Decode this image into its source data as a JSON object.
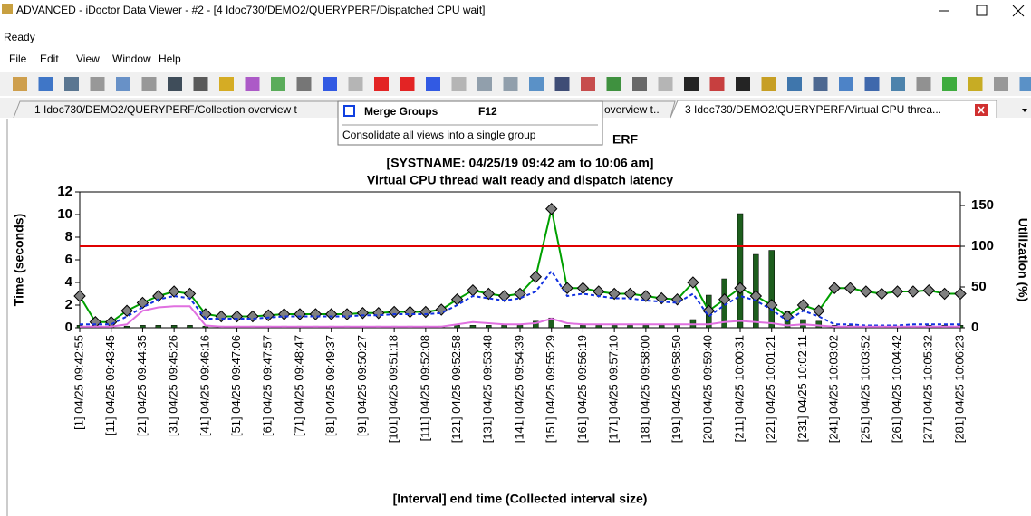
{
  "window": {
    "title": "ADVANCED - iDoctor Data Viewer - #2 - [4 Idoc730/DEMO2/QUERYPERF/Dispatched CPU wait]",
    "status": "Ready"
  },
  "menu": [
    "File",
    "Edit",
    "View",
    "Window",
    "Help"
  ],
  "tabs": [
    "1 Idoc730/DEMO2/QUERYPERF/Collection overview t",
    "overview t..",
    "3 Idoc730/DEMO2/QUERYPERF/Virtual CPU threa..."
  ],
  "tooltip": {
    "title": "Merge Groups",
    "shortcut": "F12",
    "description": "Consolidate all views into a single group"
  },
  "chart_data": {
    "type": "combo",
    "title": "ERF",
    "subtitle": "[SYSTNAME: 04/25/19 09:42 am to 10:06 am]",
    "subtitle2": "Virtual CPU thread wait ready and dispatch latency",
    "y_label": "Time (seconds)",
    "y2_label": "Utilization (%)",
    "x_label": "[Interval] end time (Collected interval size)",
    "categories": [
      "[1] 04/25 09:42:55",
      null,
      "[11] 04/25 09:43:45",
      null,
      "[21] 04/25 09:44:35",
      null,
      "[31] 04/25 09:45:26",
      null,
      "[41] 04/25 09:46:16",
      null,
      "[51] 04/25 09:47:06",
      null,
      "[61] 04/25 09:47:57",
      null,
      "[71] 04/25 09:48:47",
      null,
      "[81] 04/25 09:49:37",
      null,
      "[91] 04/25 09:50:27",
      null,
      "[101] 04/25 09:51:18",
      null,
      "[111] 04/25 09:52:08",
      null,
      "[121] 04/25 09:52:58",
      null,
      "[131] 04/25 09:53:48",
      null,
      "[141] 04/25 09:54:39",
      null,
      "[151] 04/25 09:55:29",
      null,
      "[161] 04/25 09:56:19",
      null,
      "[171] 04/25 09:57:10",
      null,
      "[181] 04/25 09:58:00",
      null,
      "[191] 04/25 09:58:50",
      null,
      "[201] 04/25 09:59:40",
      null,
      "[211] 04/25 10:00:31",
      null,
      "[221] 04/25 10:01:21",
      null,
      "[231] 04/25 10:02:11",
      null,
      "[241] 04/25 10:03:02",
      null,
      "[251] 04/25 10:03:52",
      null,
      "[261] 04/25 10:04:42",
      null,
      "[271] 04/25 10:05:32",
      null,
      "[281] 04/25 10:06:23"
    ],
    "ylim": [
      0,
      12
    ],
    "yticks": [
      0,
      2,
      4,
      6,
      8,
      10,
      12
    ],
    "y2lim": [
      0,
      166.7
    ],
    "y2ticks": [
      0,
      50,
      100,
      150
    ],
    "threshold": {
      "value": 100,
      "axis": "y2",
      "color": "#e00000"
    },
    "series": [
      {
        "type": "bar",
        "axis": "y2",
        "color": "#1d5e1d",
        "values": [
          3,
          3,
          2,
          2,
          3,
          3,
          3,
          3,
          2,
          2,
          2,
          2,
          2,
          2,
          2,
          2,
          2,
          2,
          2,
          2,
          2,
          2,
          2,
          2,
          3,
          3,
          3,
          3,
          3,
          8,
          12,
          3,
          3,
          3,
          3,
          3,
          3,
          3,
          4,
          10,
          40,
          60,
          140,
          90,
          95,
          20,
          10,
          8,
          3,
          3,
          2,
          2,
          2,
          2,
          3,
          3,
          3
        ]
      },
      {
        "type": "line",
        "axis": "y",
        "color": "#00a000",
        "marker": "diamond",
        "marker_color": "#808080",
        "values": [
          2.8,
          0.5,
          0.5,
          1.5,
          2.2,
          2.8,
          3.2,
          3.0,
          1.2,
          1.0,
          1.0,
          1.0,
          1.1,
          1.2,
          1.2,
          1.2,
          1.2,
          1.2,
          1.3,
          1.3,
          1.4,
          1.4,
          1.4,
          1.6,
          2.5,
          3.3,
          3.0,
          2.8,
          3.0,
          4.5,
          10.5,
          3.5,
          3.5,
          3.2,
          3.0,
          3.0,
          2.8,
          2.6,
          2.5,
          4.0,
          1.5,
          2.5,
          3.5,
          2.8,
          2.0,
          1.0,
          2.0,
          1.5,
          3.5,
          3.5,
          3.2,
          3.0,
          3.2,
          3.2,
          3.3,
          3.0,
          3.0
        ]
      },
      {
        "type": "line",
        "axis": "y",
        "color": "#1030e0",
        "dash": true,
        "values": [
          0.3,
          0.3,
          0.3,
          1.0,
          1.8,
          2.5,
          2.8,
          2.6,
          0.8,
          0.8,
          0.8,
          0.8,
          0.9,
          1.0,
          1.0,
          1.0,
          1.0,
          1.0,
          1.1,
          1.1,
          1.2,
          1.2,
          1.2,
          1.3,
          2.0,
          2.8,
          2.6,
          2.4,
          2.6,
          3.2,
          5.0,
          2.8,
          3.0,
          2.8,
          2.6,
          2.6,
          2.4,
          2.3,
          2.2,
          3.0,
          1.0,
          2.0,
          2.8,
          2.4,
          1.6,
          0.6,
          1.5,
          1.0,
          0.3,
          0.3,
          0.2,
          0.2,
          0.2,
          0.3,
          0.3,
          0.3,
          0.3
        ]
      },
      {
        "type": "line",
        "axis": "y",
        "color": "#e070e0",
        "values": [
          0.1,
          0.1,
          0.1,
          0.3,
          1.5,
          1.8,
          1.9,
          1.9,
          0.2,
          0.1,
          0.1,
          0.1,
          0.1,
          0.1,
          0.1,
          0.1,
          0.1,
          0.1,
          0.1,
          0.1,
          0.1,
          0.1,
          0.1,
          0.1,
          0.3,
          0.5,
          0.4,
          0.3,
          0.3,
          0.4,
          0.8,
          0.4,
          0.3,
          0.3,
          0.3,
          0.3,
          0.3,
          0.3,
          0.3,
          0.3,
          0.3,
          0.5,
          0.6,
          0.5,
          0.4,
          0.2,
          0.3,
          0.2,
          0.1,
          0.1,
          0.1,
          0.1,
          0.1,
          0.1,
          0.1,
          0.1,
          0.1
        ]
      }
    ]
  }
}
